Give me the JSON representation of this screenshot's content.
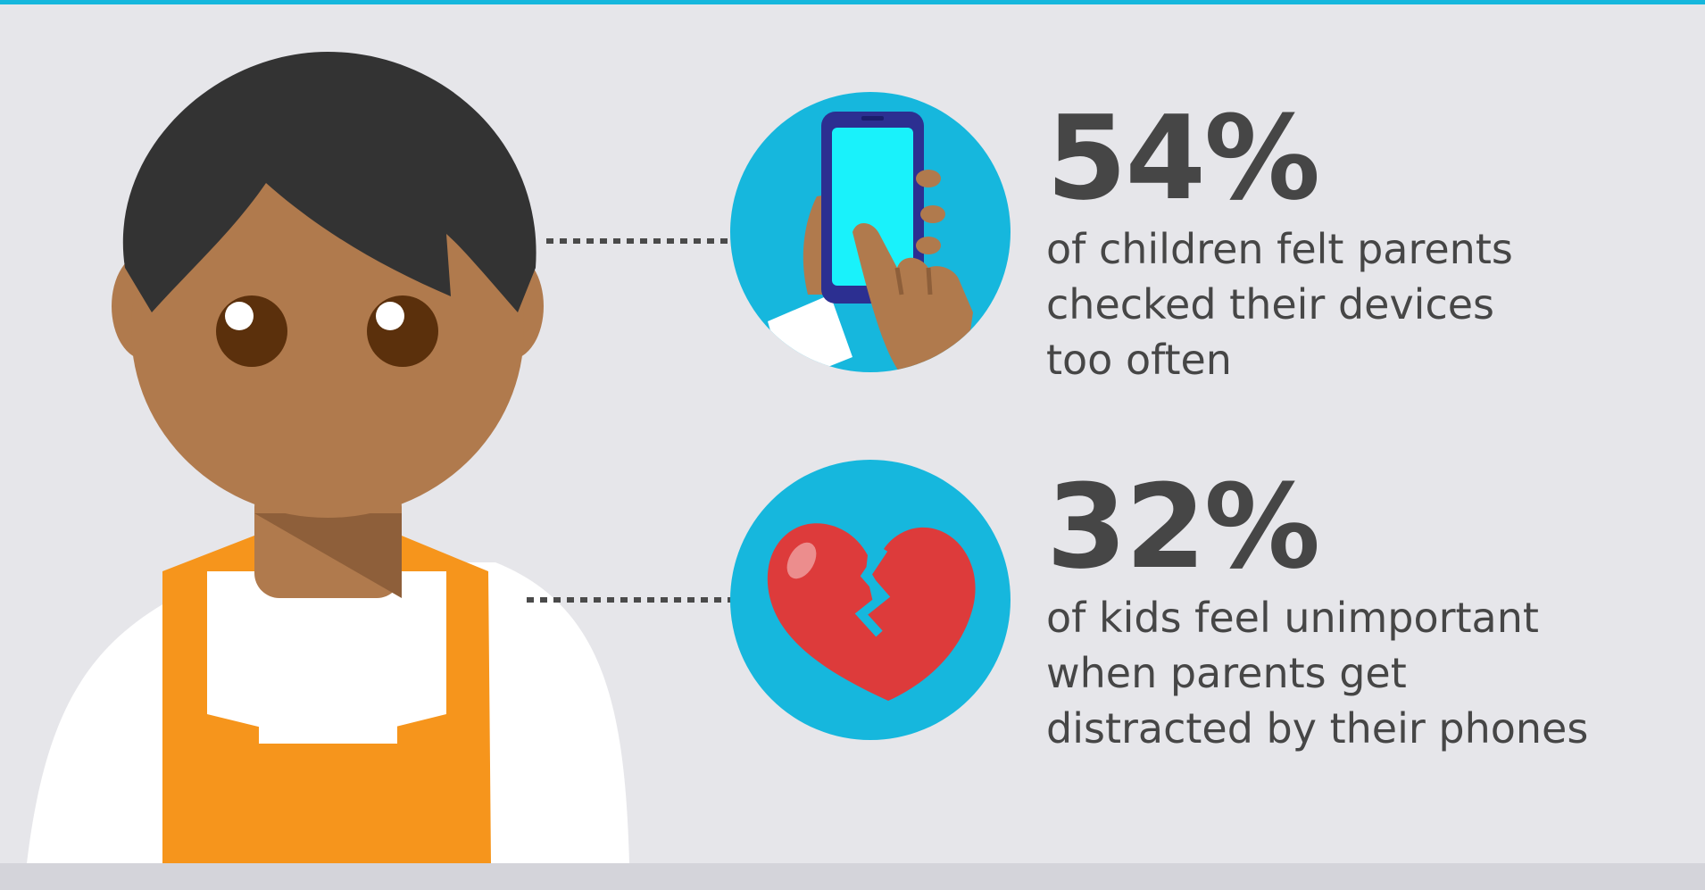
{
  "colors": {
    "background": "#e6e6ea",
    "accent": "#16b7dd",
    "text": "#464646",
    "skin": "#b07a4d",
    "hair": "#333333",
    "vest": "#f6951c",
    "heart": "#dd3b3b",
    "phone_screen": "#19f2fb"
  },
  "illustration": {
    "figure": "child-figure",
    "icons": [
      "smartphone-hand-icon",
      "broken-heart-icon"
    ]
  },
  "stats": [
    {
      "value": "54%",
      "caption_lines": [
        "of children felt parents",
        "checked their devices",
        "too often"
      ],
      "icon": "smartphone-hand-icon"
    },
    {
      "value": "32%",
      "caption_lines": [
        "of kids feel unimportant",
        "when parents get",
        "distracted by their phones"
      ],
      "icon": "broken-heart-icon"
    }
  ]
}
